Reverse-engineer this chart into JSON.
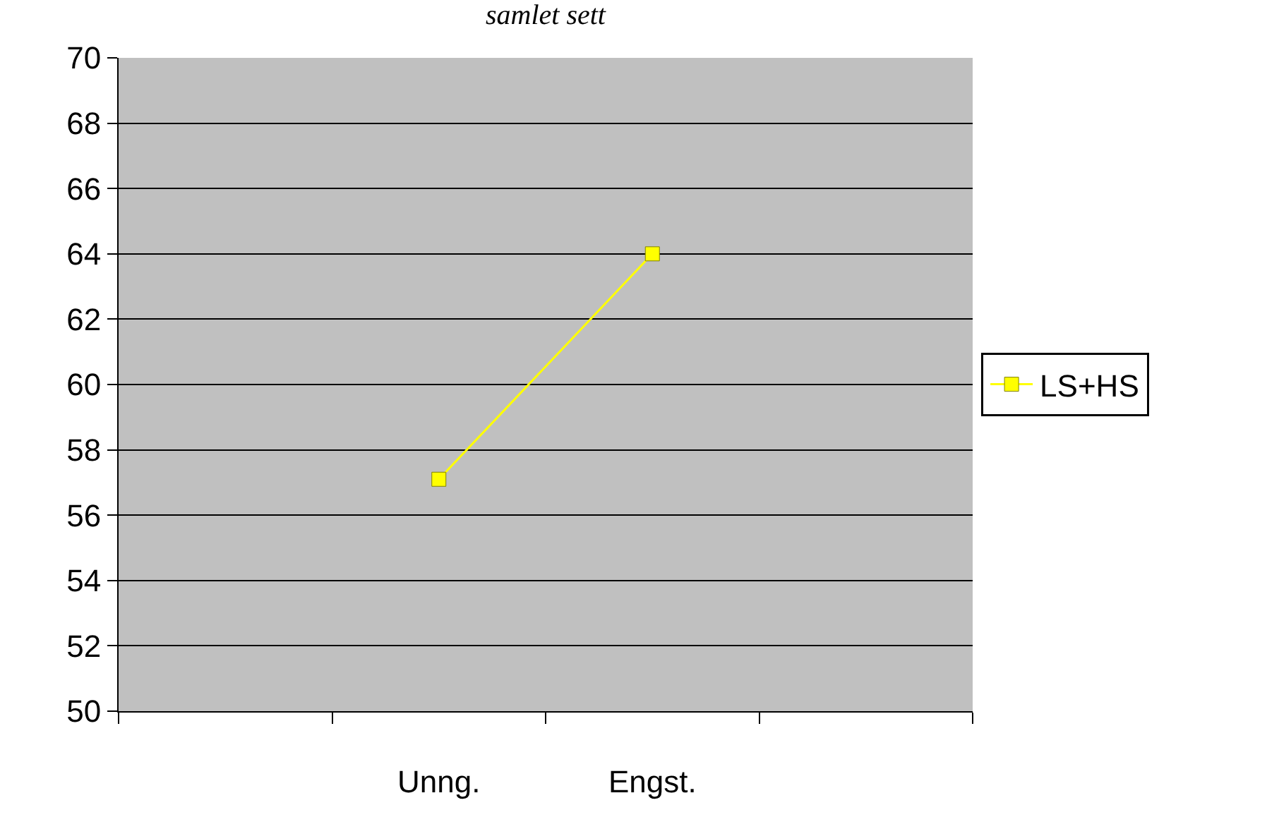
{
  "chart_data": {
    "type": "line",
    "title": "samlet sett",
    "categories": [
      null,
      "Unng.",
      "Engst.",
      null
    ],
    "series": [
      {
        "name": "LS+HS",
        "color": "#ffff00",
        "values": [
          null,
          57.1,
          64.0,
          null
        ]
      }
    ],
    "ylim": [
      50,
      70
    ],
    "yticks": [
      50,
      52,
      54,
      56,
      58,
      60,
      62,
      64,
      66,
      68,
      70
    ],
    "grid": "y",
    "legend": "right",
    "marker": "square",
    "line_style": "solid"
  }
}
